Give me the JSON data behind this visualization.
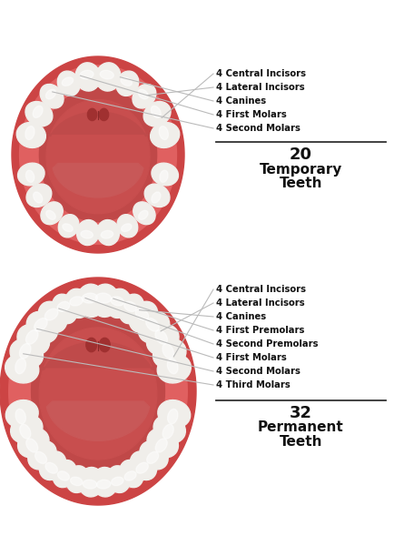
{
  "bg_color": "#ffffff",
  "outer_rim_color": "#cc4444",
  "gum_color": "#e06060",
  "inner_gum_color": "#d05050",
  "mouth_opening_color": "#c04848",
  "throat_color": "#a83838",
  "tongue_color": "#c85858",
  "tooth_color": "#f0eeea",
  "tooth_highlight": "#ffffff",
  "tooth_shadow": "#c8c4b8",
  "line_color": "#bbbbbb",
  "divider_color": "#333333",
  "text_color": "#111111",
  "title1_num": "20",
  "title1_line1": "Temporary",
  "title1_line2": "Teeth",
  "title2_num": "32",
  "title2_line1": "Permanent",
  "title2_line2": "Teeth",
  "labels_top": [
    "4 Central Incisors",
    "4 Lateral Incisors",
    "4 Canines",
    "4 First Molars",
    "4 Second Molars"
  ],
  "labels_bottom": [
    "4 Central Incisors",
    "4 Lateral Incisors",
    "4 Canines",
    "4 First Premolars",
    "4 Second Premolars",
    "4 First Molars",
    "4 Second Molars",
    "4 Third Molars"
  ],
  "font_size_label": 7.2,
  "font_size_title_num": 13,
  "font_size_title_text": 11
}
